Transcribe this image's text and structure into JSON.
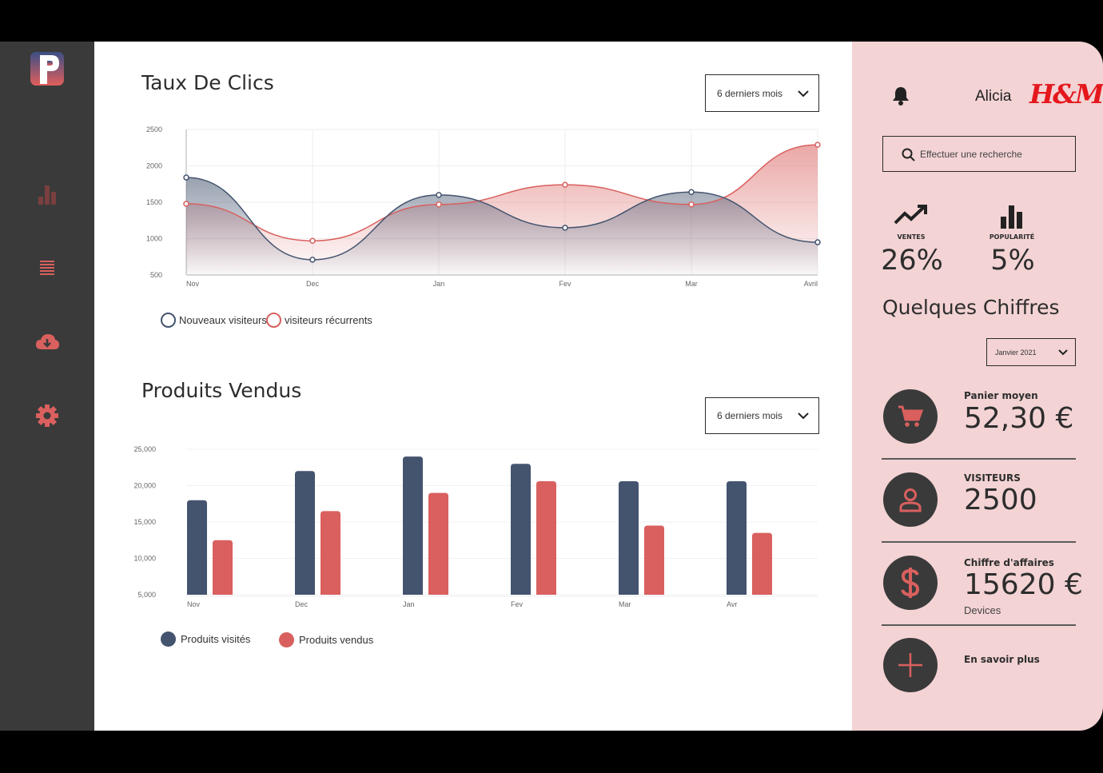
{
  "sidebar": {
    "logo_letter": "P",
    "items": [
      {
        "icon": "bar-chart-icon"
      },
      {
        "icon": "list-icon"
      },
      {
        "icon": "cloud-download-icon"
      },
      {
        "icon": "gear-icon"
      }
    ]
  },
  "clicks": {
    "title": "Taux De Clics",
    "period_select": "6 derniers mois",
    "legend": [
      "Nouveaux visiteurs",
      "visiteurs récurrents"
    ]
  },
  "sales": {
    "title": "Produits Vendus",
    "period_select": "6 derniers mois",
    "legend": [
      "Produits visités",
      "Produits vendus"
    ]
  },
  "chart_data": [
    {
      "type": "area",
      "categories": [
        "Nov",
        "Dec",
        "Jan",
        "Fev",
        "Mar",
        "Avril"
      ],
      "y_ticks": [
        "2500",
        "2000",
        "1500",
        "1000",
        "500"
      ],
      "ylim": [
        500,
        2500
      ],
      "series": [
        {
          "name": "Nouveaux visiteurs",
          "values": [
            1840,
            710,
            1600,
            1150,
            1640,
            950
          ],
          "color": "#44546f"
        },
        {
          "name": "visiteurs récurrents",
          "values": [
            1480,
            970,
            1470,
            1740,
            1470,
            2290
          ],
          "color": "#d9605e"
        }
      ]
    },
    {
      "type": "bar",
      "categories": [
        "Nov",
        "Dec",
        "Jan",
        "Fev",
        "Mar",
        "Avr"
      ],
      "y_ticks": [
        "25,000",
        "20,000",
        "15,000",
        "10,000",
        "5,000"
      ],
      "ylim": [
        5000,
        25000
      ],
      "series": [
        {
          "name": "Produits visités",
          "values": [
            18000,
            22000,
            24000,
            23000,
            20600,
            20600
          ],
          "color": "#44546f"
        },
        {
          "name": "Produits vendus",
          "values": [
            12500,
            16500,
            19000,
            20600,
            14500,
            13500
          ],
          "color": "#d9605e"
        }
      ]
    }
  ],
  "right_panel": {
    "user_name": "Alicia",
    "brand": "H&M",
    "search_placeholder": "Effectuer une recherche",
    "stats": [
      {
        "label": "VENTES",
        "value": "26%",
        "icon": "trending-up-icon"
      },
      {
        "label": "POPULARITÉ",
        "value": "5%",
        "icon": "bar-chart-icon"
      }
    ],
    "section_title": "Quelques Chiffres",
    "month_select": "Janvier 2021",
    "kpis": [
      {
        "label": "Panier moyen",
        "value": "52,30 €",
        "icon": "cart-icon"
      },
      {
        "label": "VISITEURS",
        "value": "2500",
        "icon": "user-icon"
      },
      {
        "label": "Chiffre d'affaires",
        "value": "15620 €",
        "sub": "Devices",
        "icon": "dollar-icon"
      },
      {
        "label": "En savoir plus",
        "icon": "plus-icon"
      }
    ]
  },
  "colors": {
    "navy": "#44546f",
    "coral": "#d9605e",
    "sidebar_bg": "#3a3a3a",
    "panel_bg": "#f3d3d4"
  }
}
